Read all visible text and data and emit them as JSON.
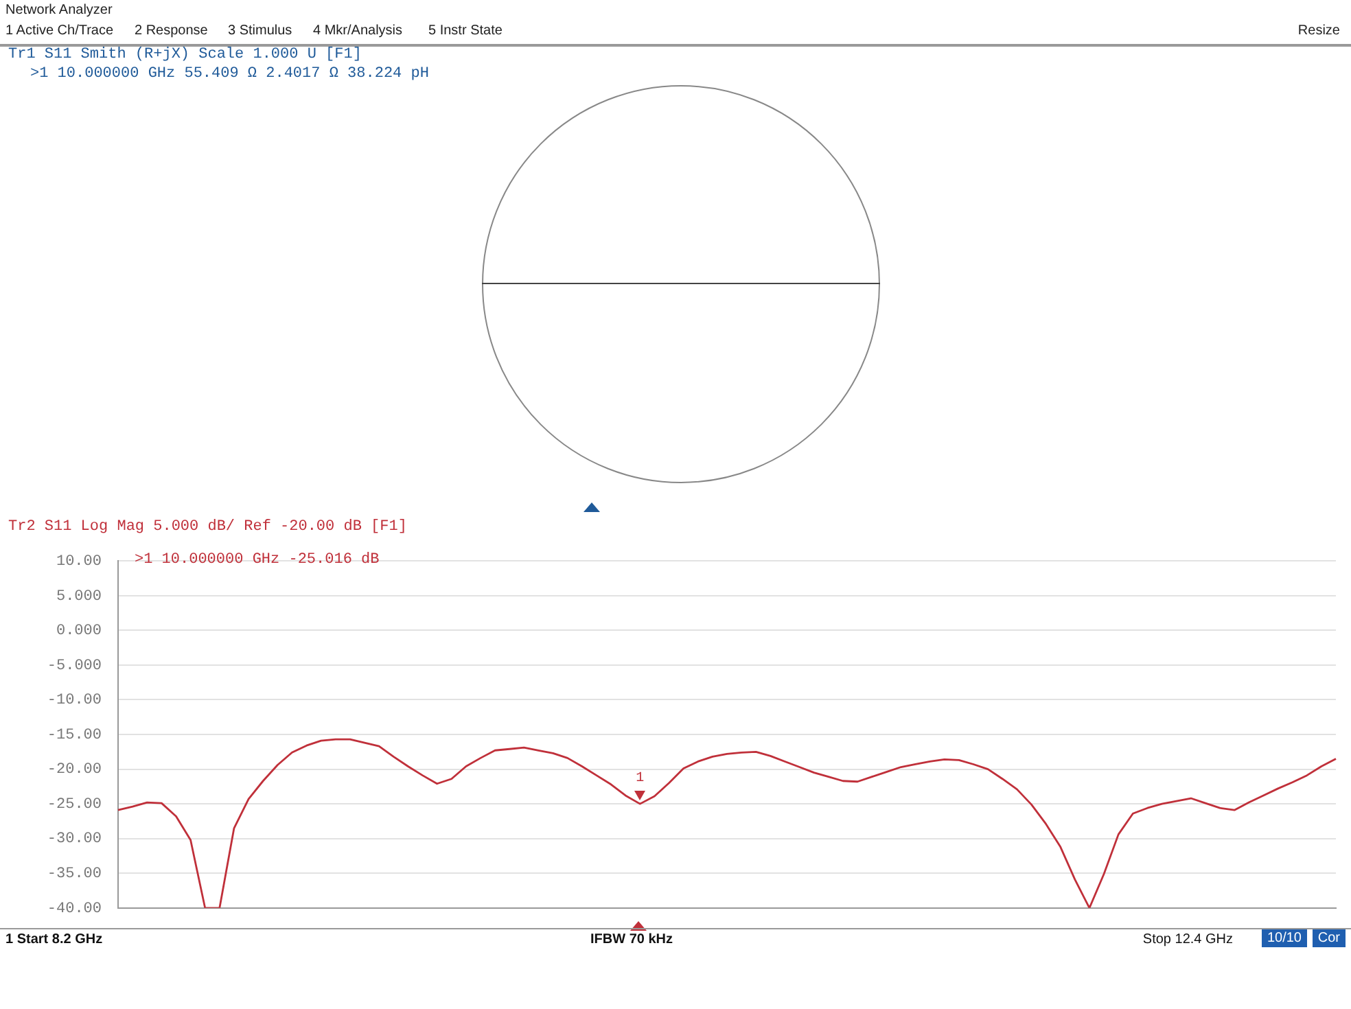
{
  "chart_data": [
    {
      "type": "other",
      "title": "Tr1 S11 Smith (R+jX) Scale 1.000 U [F1]",
      "annotations": [
        "Network Analyzer",
        "1 Active Ch/Trace",
        "2 Response",
        "3 Stimulus",
        "4 Mkr/Analysis",
        "5 Instr State",
        "Resize",
        ">1 10.000000 GHz 55.409 Ω 2.4017 Ω 38.224 pH"
      ]
    },
    {
      "type": "line",
      "title": "Tr2 S11 Log Mag 5.000 dB/ Ref -20.00 dB [F1]",
      "annotations": [
        ">1 10.000000 GHz -25.016 dB",
        {
          "text": "1",
          "y": -25.0
        },
        "1 Start 8.2 GHz",
        "IFBW 70 kHz",
        "Stop 12.4 GHz",
        "10/10",
        "Cor"
      ],
      "categories": [
        null,
        null,
        null,
        null,
        null,
        null,
        null,
        null,
        null,
        null,
        null,
        null,
        null,
        null,
        null,
        null,
        null,
        null,
        null,
        null,
        null,
        null,
        null,
        null,
        null,
        null,
        null,
        null,
        null,
        null,
        null,
        null,
        null,
        null,
        null,
        null,
        null,
        null,
        null,
        null,
        null,
        null,
        null,
        null,
        null,
        null,
        null,
        null,
        null,
        null,
        null,
        null,
        null,
        null,
        null,
        null,
        null,
        null,
        null,
        null,
        null,
        null,
        null,
        null,
        null,
        null,
        null,
        null,
        null,
        null,
        null,
        null,
        null,
        null,
        null,
        null,
        null,
        null,
        null,
        null,
        null,
        null,
        null,
        null,
        null
      ],
      "series": [
        {
          "color": "#c0303a",
          "values": [
            -25.9,
            -25.4,
            -24.8,
            -24.9,
            -26.8,
            -30.2,
            -40,
            -40,
            -28.5,
            -24.3,
            -21.7,
            -19.4,
            -17.6,
            -16.6,
            -15.9,
            -15.7,
            -15.7,
            -16.2,
            -16.7,
            -18.2,
            -19.6,
            -20.9,
            -22.1,
            -21.4,
            -19.6,
            -18.4,
            -17.3,
            -17.1,
            -16.9,
            -17.3,
            -17.7,
            -18.4,
            -19.6,
            -20.9,
            -22.2,
            -23.8,
            -25.0,
            -23.9,
            -22.0,
            -19.9,
            -18.9,
            -18.2,
            -17.8,
            -17.6,
            -17.5,
            -18.1,
            -18.9,
            -19.7,
            -20.5,
            -21.1,
            -21.7,
            -21.8,
            -21.1,
            -20.4,
            -19.7,
            -19.3,
            -18.9,
            -18.6,
            -18.7,
            -19.3,
            -20.0,
            -21.4,
            -22.9,
            -25.1,
            -27.9,
            -31.2,
            -35.9,
            -40,
            -35.1,
            -29.4,
            -26.4,
            -25.6,
            -25.0,
            -24.6,
            -24.2,
            -24.9,
            -25.6,
            -25.9,
            -24.8,
            -23.8,
            -22.8,
            -21.9,
            -20.9,
            -19.6,
            -18.5
          ]
        }
      ],
      "ylim": [
        -40,
        10
      ],
      "yticks": [
        {
          "value": 10,
          "label": "10.00"
        },
        {
          "value": 5,
          "label": "5.000"
        },
        {
          "value": 0,
          "label": "0.000"
        },
        {
          "value": -5,
          "label": "-5.000"
        },
        {
          "value": -10,
          "label": "-10.00"
        },
        {
          "value": -15,
          "label": "-15.00"
        },
        {
          "value": -20,
          "label": "-20.00"
        },
        {
          "value": -25,
          "label": "-25.00"
        },
        {
          "value": -30,
          "label": "-30.00"
        },
        {
          "value": -35,
          "label": "-35.00"
        },
        {
          "value": -40,
          "label": "-40.00"
        }
      ],
      "grid": "y",
      "tick_labels": "y",
      "marker": "none",
      "line_style": "solid"
    }
  ]
}
